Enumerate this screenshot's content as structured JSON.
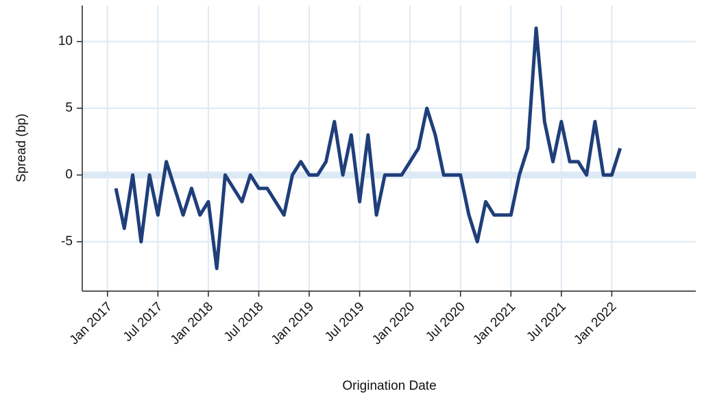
{
  "chart_data": {
    "type": "line",
    "x_label": "Origination Date",
    "y_label": "Spread (bp)",
    "x": [
      "2017-02",
      "2017-03",
      "2017-04",
      "2017-05",
      "2017-06",
      "2017-07",
      "2017-08",
      "2017-09",
      "2017-10",
      "2017-11",
      "2017-12",
      "2018-01",
      "2018-02",
      "2018-03",
      "2018-04",
      "2018-05",
      "2018-06",
      "2018-07",
      "2018-08",
      "2018-09",
      "2018-10",
      "2018-11",
      "2018-12",
      "2019-01",
      "2019-02",
      "2019-03",
      "2019-04",
      "2019-05",
      "2019-06",
      "2019-07",
      "2019-08",
      "2019-09",
      "2019-10",
      "2019-11",
      "2019-12",
      "2020-01",
      "2020-02",
      "2020-03",
      "2020-04",
      "2020-05",
      "2020-06",
      "2020-07",
      "2020-08",
      "2020-09",
      "2020-10",
      "2020-11",
      "2020-12",
      "2021-01",
      "2021-02",
      "2021-03",
      "2021-04",
      "2021-05",
      "2021-06",
      "2021-07",
      "2021-08",
      "2021-09",
      "2021-10",
      "2021-11",
      "2021-12",
      "2022-01",
      "2022-02"
    ],
    "series": [
      {
        "name": "Spread",
        "color": "#1f3f7a",
        "values": [
          -1,
          -4,
          0,
          -5,
          0,
          -3,
          1,
          -1,
          -3,
          -1,
          -3,
          -2,
          -7,
          0,
          -1,
          -2,
          0,
          -1,
          -1,
          -2,
          -3,
          0,
          1,
          0,
          0,
          1,
          4,
          0,
          3,
          -2,
          3,
          -3,
          0,
          0,
          0,
          1,
          2,
          5,
          3,
          0,
          0,
          0,
          -3,
          -5,
          -2,
          -3,
          -3,
          -3,
          0,
          2,
          11,
          4,
          1,
          4,
          1,
          1,
          0,
          4,
          0,
          0,
          2
        ]
      }
    ],
    "xlim": [
      "2016-10",
      "2022-11"
    ],
    "xticks": [
      {
        "value": "2017-01",
        "label": "Jan 2017"
      },
      {
        "value": "2017-07",
        "label": "Jul 2017"
      },
      {
        "value": "2018-01",
        "label": "Jan 2018"
      },
      {
        "value": "2018-07",
        "label": "Jul 2018"
      },
      {
        "value": "2019-01",
        "label": "Jan 2019"
      },
      {
        "value": "2019-07",
        "label": "Jul 2019"
      },
      {
        "value": "2020-01",
        "label": "Jan 2020"
      },
      {
        "value": "2020-07",
        "label": "Jul 2020"
      },
      {
        "value": "2021-01",
        "label": "Jan 2021"
      },
      {
        "value": "2021-07",
        "label": "Jul 2021"
      },
      {
        "value": "2022-01",
        "label": "Jan 2022"
      }
    ],
    "ylim": [
      -8.7,
      12.7
    ],
    "yticks": [
      -5,
      0,
      5,
      10
    ],
    "reference_line": 0,
    "grid": true,
    "grid_color": "#dde9f5"
  }
}
